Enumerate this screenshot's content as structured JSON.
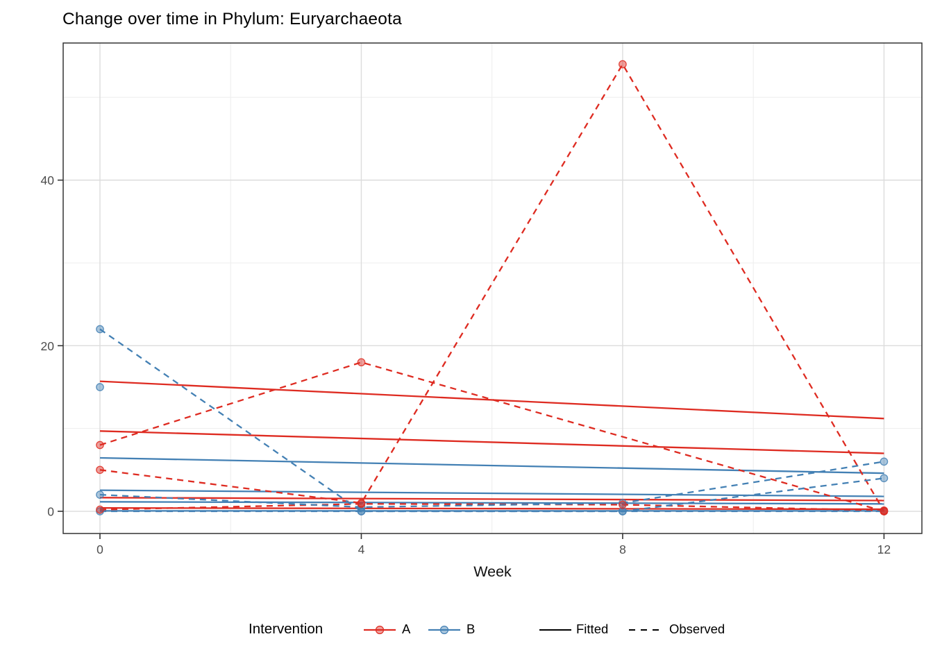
{
  "chart_data": {
    "type": "line",
    "title": "Change over time in Phylum: Euryarchaeota",
    "xlabel": "Week",
    "ylabel": "",
    "xlim": [
      -0.563,
      12.58
    ],
    "ylim": [
      -2.68,
      56.56
    ],
    "grid": {
      "major_x": [
        0,
        4,
        8,
        12
      ],
      "minor_x": [
        2,
        6,
        10
      ],
      "major_y": [
        0,
        20,
        40
      ],
      "minor_y": [
        10,
        30,
        50
      ]
    },
    "x_axis": {
      "title": "Week",
      "ticks": [
        {
          "label": "0",
          "value": 0
        },
        {
          "label": "4",
          "value": 4
        },
        {
          "label": "8",
          "value": 8
        },
        {
          "label": "12",
          "value": 12
        }
      ]
    },
    "y_axis": {
      "title": "",
      "ticks": [
        {
          "label": "0",
          "value": 0
        },
        {
          "label": "20",
          "value": 20
        },
        {
          "label": "40",
          "value": 40
        }
      ]
    },
    "colors": {
      "A": "#DE2B21",
      "B": "#4380B4",
      "linetype_key": "#000000",
      "grid_major": "#DCDCDC",
      "grid_minor": "#EDEDED",
      "panel_border": "#333333",
      "tick_label": "#4D4D4D"
    },
    "legend": {
      "title": "Intervention",
      "items": [
        {
          "label": "A",
          "group": "A"
        },
        {
          "label": "B",
          "group": "B"
        }
      ],
      "linetype_items": [
        {
          "label": "Fitted",
          "style": "solid"
        },
        {
          "label": "Observed",
          "style": "dashed"
        }
      ],
      "position": "bottom"
    },
    "series": [
      {
        "name": "A-subject1-fitted",
        "group": "A",
        "style": "fitted",
        "x": [
          0,
          12
        ],
        "y": [
          15.7,
          11.2
        ]
      },
      {
        "name": "A-subject2-fitted",
        "group": "A",
        "style": "fitted",
        "x": [
          0,
          12
        ],
        "y": [
          9.7,
          7.0
        ]
      },
      {
        "name": "A-subject3-fitted",
        "group": "A",
        "style": "fitted",
        "x": [
          0,
          12
        ],
        "y": [
          1.65,
          1.3
        ]
      },
      {
        "name": "A-subject4-fitted",
        "group": "A",
        "style": "fitted",
        "x": [
          0,
          12
        ],
        "y": [
          0.4,
          0.25
        ]
      },
      {
        "name": "B-subject1-fitted",
        "group": "B",
        "style": "fitted",
        "x": [
          0,
          12
        ],
        "y": [
          6.45,
          4.6
        ]
      },
      {
        "name": "B-subject2-fitted",
        "group": "B",
        "style": "fitted",
        "x": [
          0,
          12
        ],
        "y": [
          2.55,
          1.8
        ]
      },
      {
        "name": "B-subject3-fitted",
        "group": "B",
        "style": "fitted",
        "x": [
          0,
          12
        ],
        "y": [
          1.15,
          0.9
        ]
      },
      {
        "name": "B-subject4-fitted",
        "group": "B",
        "style": "fitted",
        "x": [
          0,
          12
        ],
        "y": [
          0.05,
          0.05
        ]
      },
      {
        "name": "A-subject1-observed",
        "group": "A",
        "style": "observed",
        "x": [
          0,
          4,
          12
        ],
        "y": [
          8,
          18,
          0
        ]
      },
      {
        "name": "A-subject2-observed",
        "group": "A",
        "style": "observed",
        "x": [
          0,
          4,
          8,
          12
        ],
        "y": [
          5,
          1,
          54,
          0
        ]
      },
      {
        "name": "A-subject3-observed",
        "group": "A",
        "style": "observed",
        "x": [
          0,
          4,
          8,
          12
        ],
        "y": [
          0.2,
          0.9,
          0.8,
          0.1
        ]
      },
      {
        "name": "B-subject1-observed",
        "group": "B",
        "style": "observed",
        "x": [
          0,
          4,
          8,
          12
        ],
        "y": [
          22,
          0,
          0,
          0
        ]
      },
      {
        "name": "B-subject2-observed",
        "group": "B",
        "style": "observed",
        "x": [
          0
        ],
        "y": [
          15
        ]
      },
      {
        "name": "B-subject3-observed",
        "group": "B",
        "style": "observed",
        "x": [
          0,
          4,
          8,
          12
        ],
        "y": [
          2,
          0.5,
          1,
          6
        ]
      },
      {
        "name": "B-subject4-observed",
        "group": "B",
        "style": "observed",
        "x": [
          0,
          4,
          8,
          12
        ],
        "y": [
          0,
          0,
          0,
          4
        ]
      }
    ]
  }
}
